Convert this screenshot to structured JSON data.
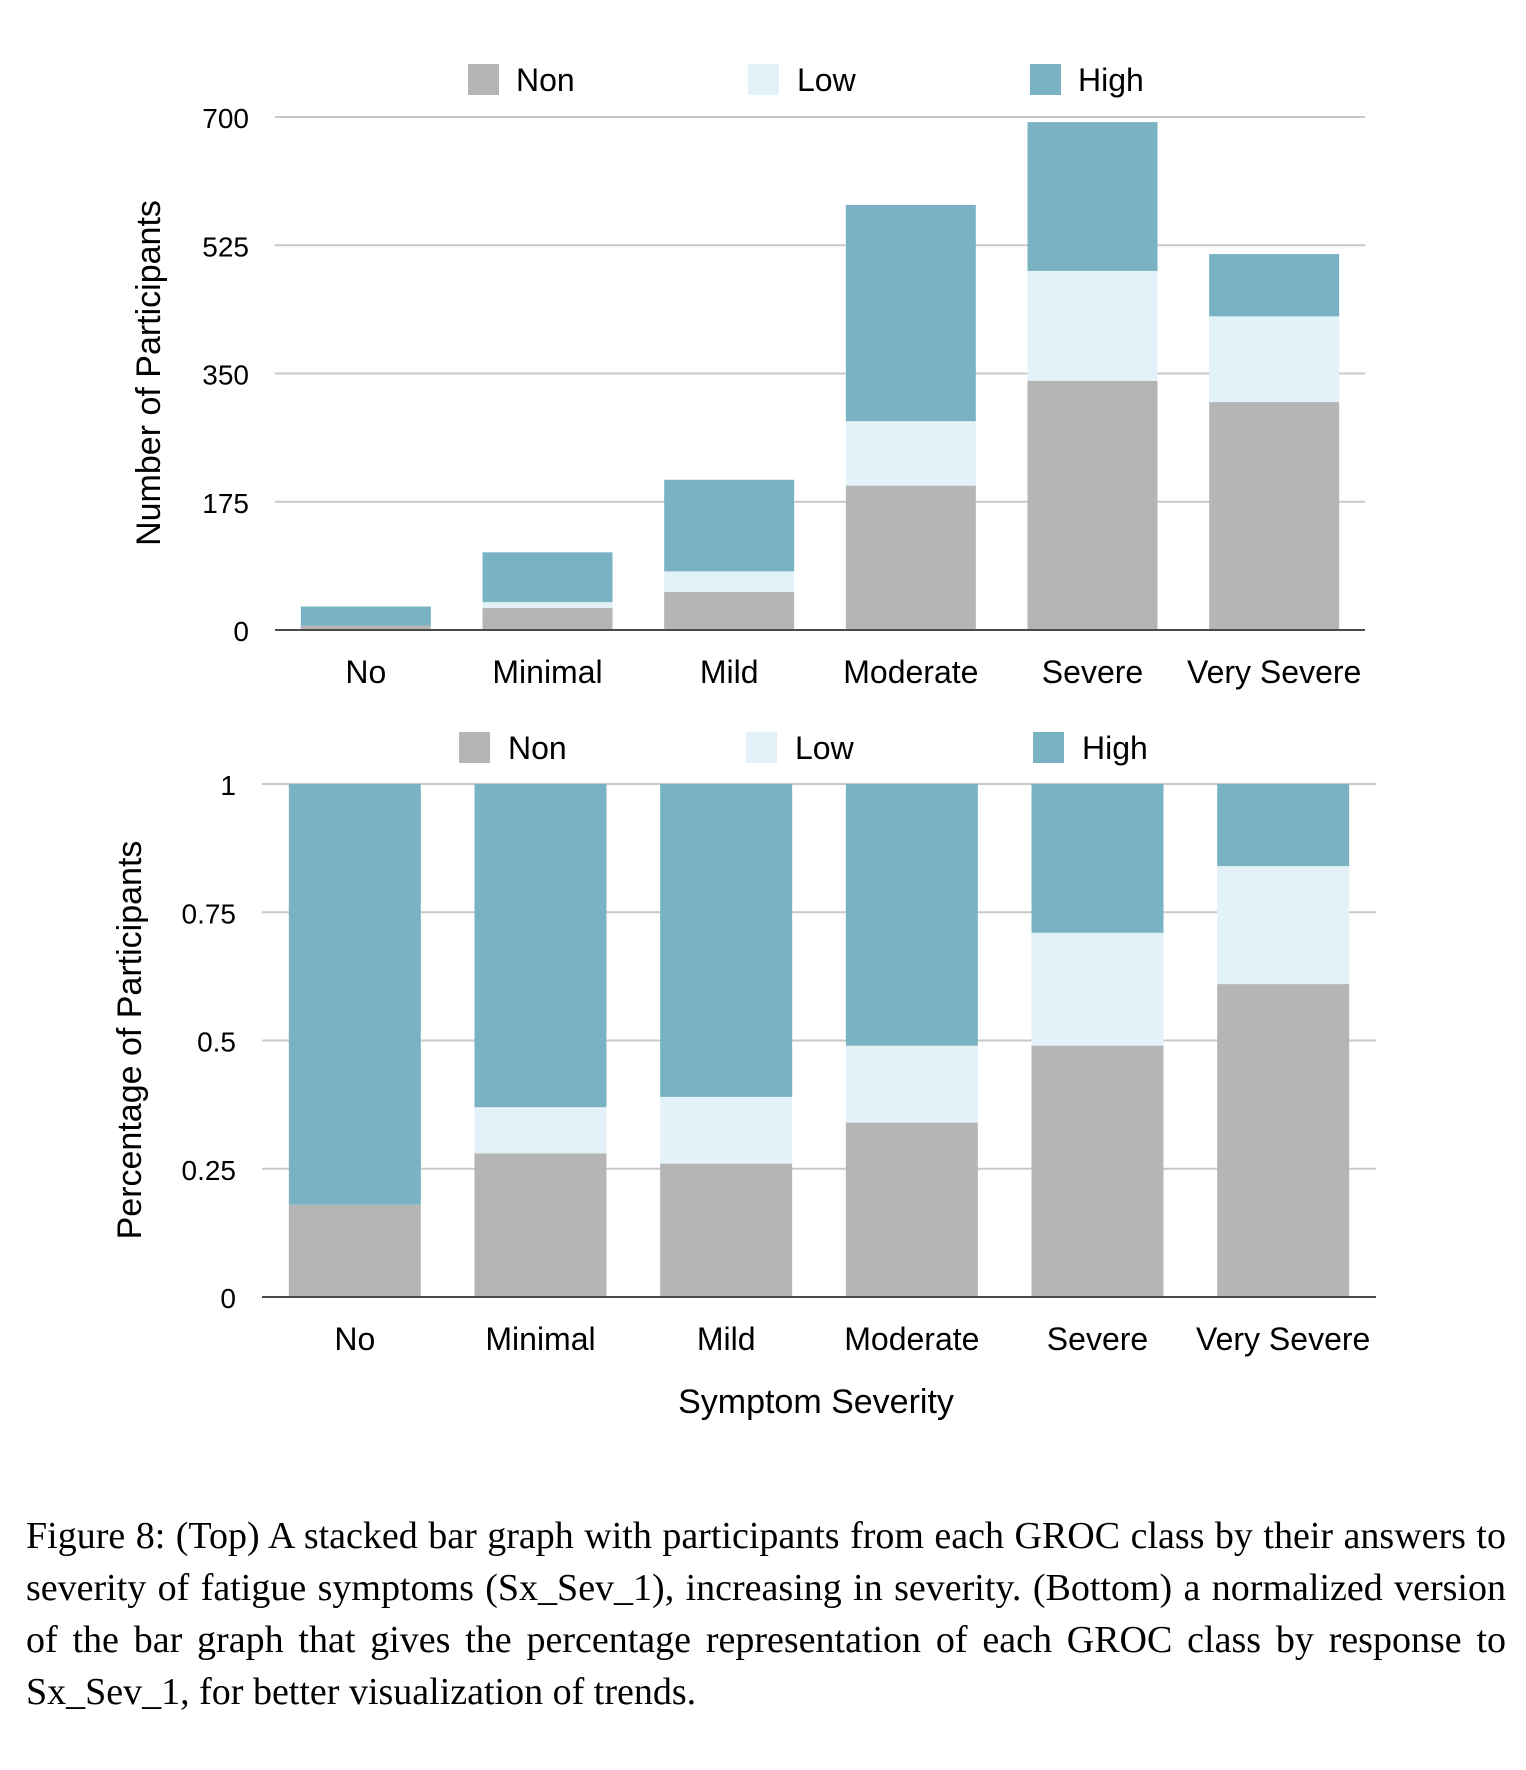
{
  "chart_data": [
    {
      "type": "bar",
      "stacked": true,
      "categories": [
        "No",
        "Minimal",
        "Mild",
        "Moderate",
        "Severe",
        "Very Severe"
      ],
      "series": [
        {
          "name": "Non",
          "color": "#b5b5b5",
          "values": [
            6,
            30,
            52,
            197,
            340,
            311
          ]
        },
        {
          "name": "Low",
          "color": "#e2f2f8",
          "values": [
            0,
            8,
            28,
            88,
            150,
            117
          ]
        },
        {
          "name": "High",
          "color": "#79b3c3",
          "values": [
            26,
            68,
            125,
            295,
            203,
            85
          ]
        }
      ],
      "title": "",
      "xlabel": "",
      "ylabel": "Number of Participants",
      "ylim": [
        0,
        700
      ],
      "yticks": [
        "0",
        "175",
        "350",
        "525",
        "700"
      ],
      "grid": true,
      "legend": "top"
    },
    {
      "type": "bar",
      "stacked": true,
      "categories": [
        "No",
        "Minimal",
        "Mild",
        "Moderate",
        "Severe",
        "Very Severe"
      ],
      "series": [
        {
          "name": "Non",
          "color": "#b5b5b5",
          "values": [
            0.18,
            0.28,
            0.26,
            0.34,
            0.49,
            0.61
          ]
        },
        {
          "name": "Low",
          "color": "#e2f2f8",
          "values": [
            0.0,
            0.09,
            0.13,
            0.15,
            0.22,
            0.23
          ]
        },
        {
          "name": "High",
          "color": "#79b3c3",
          "values": [
            0.82,
            0.63,
            0.61,
            0.51,
            0.29,
            0.16
          ]
        }
      ],
      "title": "",
      "xlabel": "Symptom Severity",
      "ylabel": "Percentage of Participants",
      "ylim": [
        0,
        1
      ],
      "yticks": [
        "0",
        "0.25",
        "0.5",
        "0.75",
        "1"
      ],
      "grid": true,
      "legend": "top"
    }
  ],
  "caption": "Figure 8: (Top) A stacked bar graph with participants from each GROC class by their answers to severity of fatigue symptoms (Sx_Sev_1), increasing in severity. (Bottom) a normalized version of the bar graph that gives the percentage representation of each GROC class by response to Sx_Sev_1, for better visualization of trends."
}
